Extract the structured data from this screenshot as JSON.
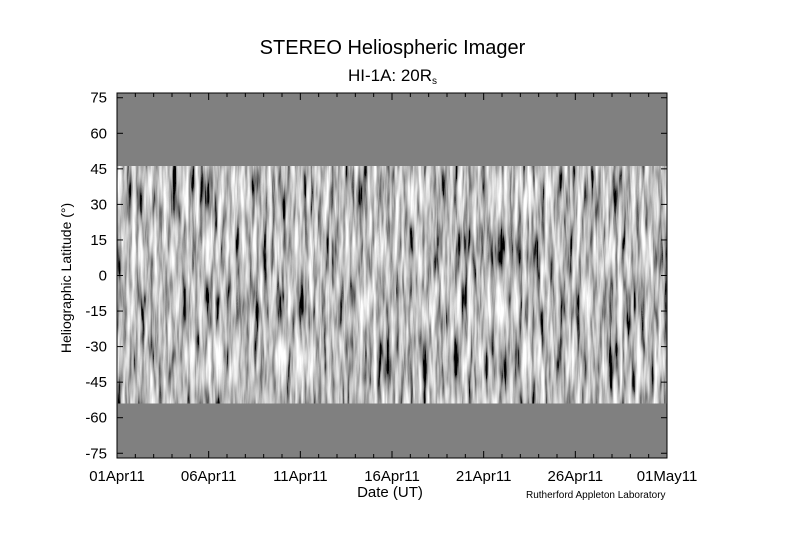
{
  "chart_data": {
    "type": "heatmap",
    "title": "STEREO Heliospheric Imager",
    "subtitle_main": "HI-1A: 20R",
    "subtitle_sub": "s",
    "xlabel": "Date (UT)",
    "ylabel": "Heliographic Latitude (°)",
    "x_tick_labels": [
      "01Apr11",
      "06Apr11",
      "11Apr11",
      "16Apr11",
      "21Apr11",
      "26Apr11",
      "01May11"
    ],
    "x_range_days": [
      0,
      30
    ],
    "y_ticks": [
      75,
      60,
      45,
      30,
      15,
      0,
      -15,
      -30,
      -45,
      -60,
      -75
    ],
    "ylim": [
      -77,
      77
    ],
    "data_coverage_latitude": [
      -54,
      46
    ],
    "colormap": "grayscale",
    "fill_color": "#808080",
    "grid": false
  },
  "credit": "Rutherford Appleton Laboratory"
}
